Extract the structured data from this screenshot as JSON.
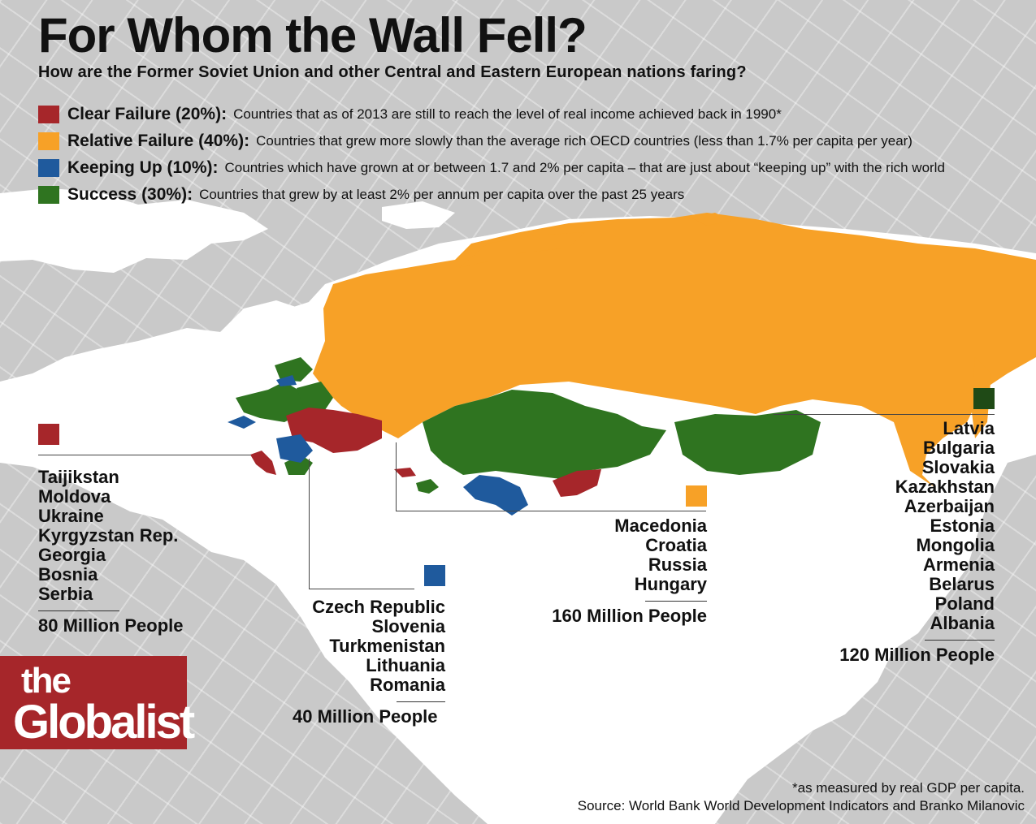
{
  "title": "For Whom the Wall Fell?",
  "subtitle": "How are the Former Soviet Union and other Central and Eastern European nations faring?",
  "colors": {
    "clear_failure": "#a6262a",
    "relative_failure": "#f7a127",
    "keeping_up": "#1f5a9d",
    "success": "#2f7420",
    "success_dark": "#1f4a16",
    "land": "#ffffff",
    "sea": "#c9c9c9"
  },
  "legend": [
    {
      "label": "Clear Failure (20%):",
      "description": "Countries that as of 2013 are still to reach the level of real income achieved back in 1990*"
    },
    {
      "label": "Relative Failure (40%):",
      "description": "Countries that grew more slowly than the average rich OECD countries (less than 1.7% per capita per year)"
    },
    {
      "label": "Keeping Up (10%):",
      "description": "Countries which have grown at or between 1.7 and 2% per capita – that are just about “keeping up” with the rich world"
    },
    {
      "label": "Success (30%):",
      "description": "Countries that grew by at least 2% per annum per capita over the past  25 years"
    }
  ],
  "groups": {
    "clear_failure": {
      "countries": [
        "Taijikstan",
        "Moldova",
        "Ukraine",
        "Kyrgyzstan Rep.",
        "Georgia",
        "Bosnia",
        "Serbia"
      ],
      "population": "80 Million People"
    },
    "keeping_up": {
      "countries": [
        "Czech Republic",
        "Slovenia",
        "Turkmenistan",
        "Lithuania",
        "Romania"
      ],
      "population": "40 Million People"
    },
    "relative_failure": {
      "countries": [
        "Macedonia",
        "Croatia",
        "Russia",
        "Hungary"
      ],
      "population": "160 Million People"
    },
    "success": {
      "countries": [
        "Latvia",
        "Bulgaria",
        "Slovakia",
        "Kazakhstan",
        "Azerbaijan",
        "Estonia",
        "Mongolia",
        "Armenia",
        "Belarus",
        "Poland",
        "Albania"
      ],
      "population": "120 Million People"
    }
  },
  "logo": {
    "line1": "the",
    "line2": "Globalist"
  },
  "footnote": "*as measured by real GDP per capita.",
  "source": "Source: World Bank World Development Indicators and Branko Milanovic"
}
